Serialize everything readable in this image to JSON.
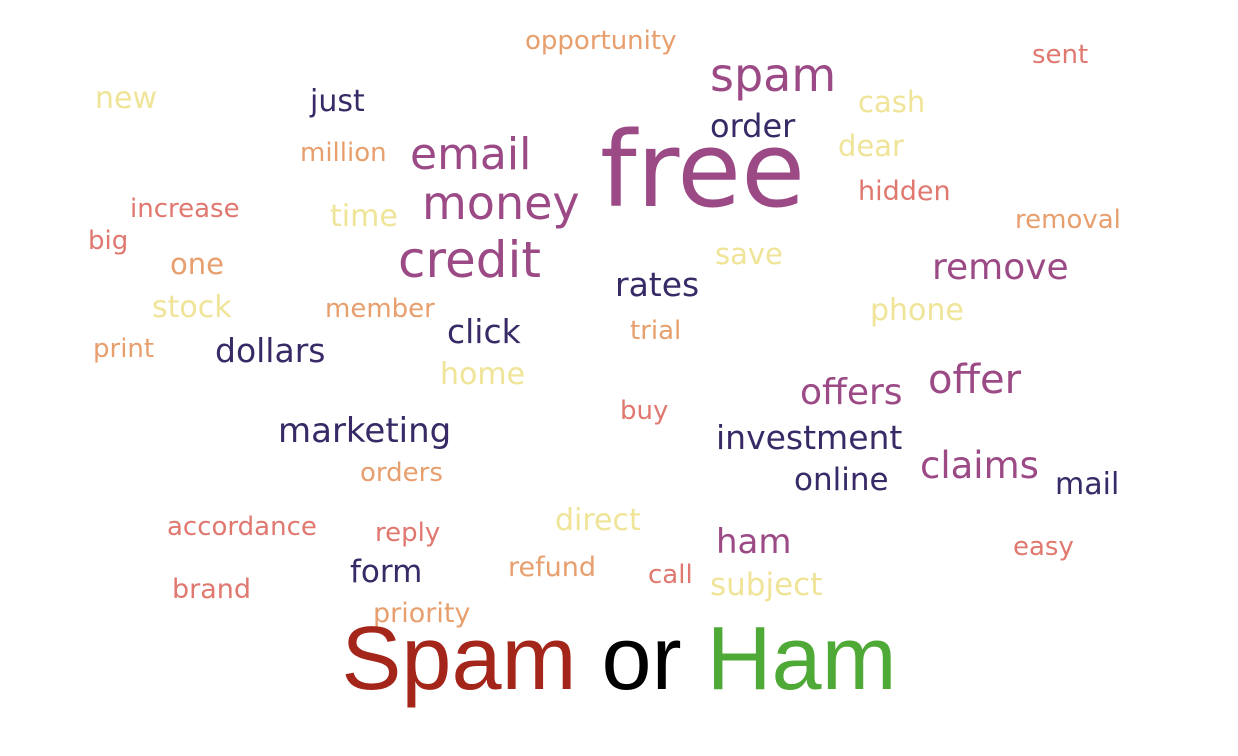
{
  "colors": {
    "purple": "#9c4a86",
    "navy": "#372a66",
    "coral": "#e07870",
    "tan": "#e79f6e",
    "butter": "#efe497",
    "caption_red": "#a4261a",
    "caption_black": "#000000",
    "caption_green": "#4fa936"
  },
  "words": {
    "free": "free",
    "spam": "spam",
    "email": "email",
    "money": "money",
    "credit": "credit",
    "order": "order",
    "opportunity": "opportunity",
    "sent": "sent",
    "new": "new",
    "just": "just",
    "cash": "cash",
    "dear": "dear",
    "million": "million",
    "hidden": "hidden",
    "increase": "increase",
    "time": "time",
    "removal": "removal",
    "big": "big",
    "save": "save",
    "one": "one",
    "remove": "remove",
    "rates": "rates",
    "stock": "stock",
    "member": "member",
    "phone": "phone",
    "click": "click",
    "trial": "trial",
    "print": "print",
    "dollars": "dollars",
    "home": "home",
    "offer": "offer",
    "offers": "offers",
    "buy": "buy",
    "marketing": "marketing",
    "investment": "investment",
    "claims": "claims",
    "orders": "orders",
    "online": "online",
    "mail": "mail",
    "direct": "direct",
    "accordance": "accordance",
    "reply": "reply",
    "ham": "ham",
    "easy": "easy",
    "refund": "refund",
    "form": "form",
    "call": "call",
    "subject": "subject",
    "brand": "brand",
    "priority": "priority"
  },
  "caption": {
    "word1": "Spam",
    "word2": "or",
    "word3": "Ham"
  }
}
